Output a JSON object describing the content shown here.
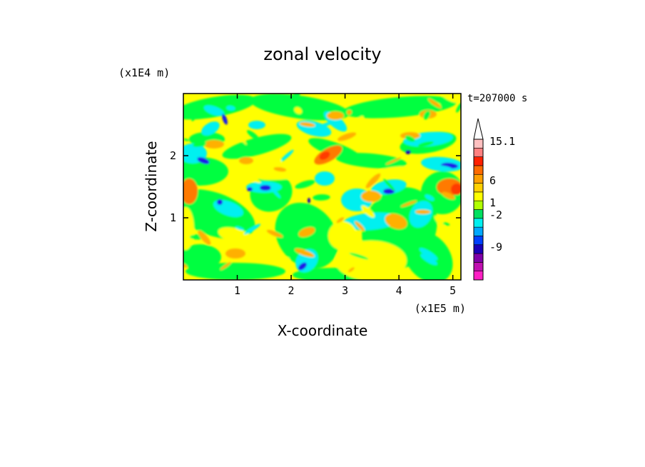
{
  "chart_data": {
    "type": "heatmap",
    "title": "zonal velocity",
    "xlabel": "X-coordinate",
    "ylabel": "Z-coordinate",
    "x_scale_label": "(x1E5 m)",
    "y_scale_label": "(x1E4 m)",
    "time_label": "t=207000 s",
    "xlim": [
      0,
      5.15
    ],
    "ylim": [
      0,
      3.0
    ],
    "x_ticks": [
      "1",
      "2",
      "3",
      "4",
      "5"
    ],
    "y_ticks": [
      "1",
      "2"
    ],
    "colorbar": {
      "colors": [
        "#ff1fc4",
        "#c00fb0",
        "#7f00a8",
        "#1a00b8",
        "#0040ff",
        "#00a8ff",
        "#00f0f0",
        "#00e060",
        "#b0ff00",
        "#ffff00",
        "#ffd000",
        "#ffa000",
        "#ff6a00",
        "#ff2000",
        "#ff8080",
        "#ffc0c0"
      ],
      "tick_labels": [
        "15.1",
        "6",
        "1",
        "-2",
        "-9"
      ],
      "tick_values": [
        15.1,
        6,
        1,
        -2,
        -9
      ]
    },
    "field_palette": {
      "yellow": "#ffff00",
      "green": "#00ff40",
      "cyan": "#00f0f0",
      "orange": "#ffb000",
      "dark_orange": "#ff7a00",
      "red": "#ff3a00",
      "blue": "#1a1ae8",
      "navy": "#1a00b0"
    }
  }
}
